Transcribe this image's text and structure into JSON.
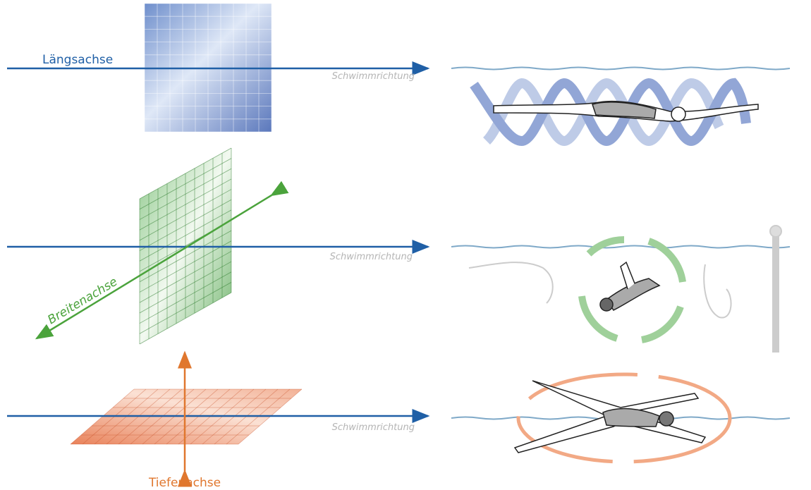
{
  "rows": [
    {
      "axis_label": "Längsachse",
      "direction_label": "Schwimmrichtung"
    },
    {
      "axis_label": "Breitenachse",
      "direction_label": "Schwimmrichtung"
    },
    {
      "axis_label": "Tiefenachse",
      "direction_label": "Schwimmrichtung"
    }
  ]
}
